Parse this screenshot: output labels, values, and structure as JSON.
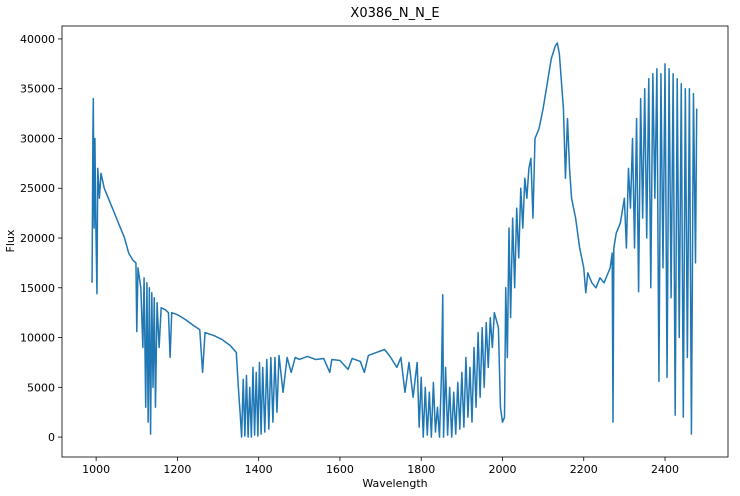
{
  "chart_data": {
    "type": "line",
    "title": "X0386_N_N_E",
    "x_label": "Wavelength",
    "y_label": "Flux",
    "x": [
      990,
      992,
      993,
      995,
      997,
      999,
      1002,
      1004,
      1008,
      1012,
      1020,
      1030,
      1040,
      1050,
      1060,
      1070,
      1080,
      1090,
      1098,
      1100,
      1103,
      1110,
      1115,
      1118,
      1122,
      1125,
      1128,
      1131,
      1134,
      1137,
      1140,
      1143,
      1146,
      1150,
      1155,
      1160,
      1170,
      1178,
      1182,
      1186,
      1200,
      1220,
      1240,
      1255,
      1262,
      1268,
      1290,
      1310,
      1330,
      1345,
      1350,
      1355,
      1358,
      1362,
      1366,
      1370,
      1374,
      1378,
      1382,
      1386,
      1390,
      1394,
      1398,
      1402,
      1406,
      1410,
      1415,
      1420,
      1425,
      1430,
      1435,
      1440,
      1445,
      1450,
      1460,
      1470,
      1480,
      1490,
      1500,
      1520,
      1540,
      1560,
      1575,
      1580,
      1600,
      1620,
      1630,
      1650,
      1660,
      1670,
      1690,
      1710,
      1725,
      1740,
      1750,
      1760,
      1770,
      1780,
      1790,
      1795,
      1800,
      1805,
      1810,
      1815,
      1820,
      1825,
      1830,
      1835,
      1840,
      1845,
      1850,
      1853,
      1855,
      1860,
      1865,
      1870,
      1875,
      1880,
      1885,
      1890,
      1895,
      1900,
      1905,
      1910,
      1915,
      1920,
      1925,
      1930,
      1935,
      1940,
      1945,
      1950,
      1955,
      1960,
      1965,
      1970,
      1975,
      1980,
      1990,
      1995,
      2000,
      2005,
      2008,
      2012,
      2016,
      2020,
      2025,
      2030,
      2035,
      2040,
      2045,
      2050,
      2055,
      2060,
      2065,
      2070,
      2075,
      2080,
      2090,
      2100,
      2110,
      2120,
      2130,
      2135,
      2140,
      2150,
      2155,
      2160,
      2165,
      2170,
      2180,
      2190,
      2200,
      2205,
      2210,
      2220,
      2230,
      2240,
      2250,
      2260,
      2265,
      2270,
      2272,
      2274,
      2280,
      2290,
      2300,
      2305,
      2310,
      2315,
      2320,
      2325,
      2330,
      2335,
      2340,
      2345,
      2350,
      2355,
      2360,
      2365,
      2370,
      2375,
      2380,
      2385,
      2390,
      2395,
      2400,
      2405,
      2410,
      2415,
      2420,
      2425,
      2430,
      2435,
      2440,
      2445,
      2450,
      2455,
      2460,
      2465,
      2470,
      2475,
      2478
    ],
    "series": [
      {
        "color": "#1f77b4",
        "values": [
          15500,
          30000,
          34000,
          21000,
          30000,
          22000,
          14400,
          27000,
          24000,
          26500,
          25000,
          24000,
          23000,
          22000,
          21000,
          20000,
          18500,
          17800,
          17500,
          10600,
          17000,
          15000,
          9000,
          16000,
          3000,
          15500,
          1500,
          15000,
          300,
          14500,
          5000,
          14000,
          3000,
          13500,
          9000,
          13000,
          12800,
          12500,
          8000,
          12500,
          12300,
          11800,
          11200,
          10800,
          6500,
          10500,
          10200,
          9800,
          9200,
          8500,
          5000,
          2000,
          0,
          5800,
          100,
          6200,
          0,
          5000,
          0,
          7000,
          200,
          6500,
          100,
          7500,
          300,
          7000,
          500,
          7800,
          800,
          8000,
          1500,
          8000,
          2500,
          8200,
          4500,
          8000,
          6500,
          8000,
          7800,
          8100,
          7800,
          7900,
          6500,
          7800,
          7700,
          6800,
          7900,
          7600,
          6500,
          8200,
          8500,
          8800,
          8000,
          7000,
          8000,
          4500,
          7500,
          4000,
          7500,
          1000,
          6000,
          0,
          5000,
          200,
          4500,
          0,
          5500,
          500,
          3000,
          0,
          6500,
          14300,
          0,
          7000,
          200,
          5000,
          0,
          4500,
          300,
          5500,
          800,
          6500,
          1000,
          8000,
          2000,
          7000,
          1500,
          9000,
          3000,
          10500,
          4000,
          11000,
          5000,
          11500,
          7000,
          12000,
          9000,
          12500,
          11000,
          3000,
          1500,
          2000,
          15000,
          8000,
          21000,
          12000,
          22000,
          15000,
          23000,
          18000,
          25000,
          21000,
          26000,
          24000,
          27000,
          28000,
          22000,
          30000,
          31000,
          33000,
          35500,
          38000,
          39300,
          39600,
          38500,
          33000,
          26000,
          32000,
          27000,
          24000,
          22000,
          19000,
          17000,
          14500,
          16500,
          15500,
          15000,
          16000,
          15500,
          16500,
          17000,
          18500,
          1500,
          19000,
          20500,
          21500,
          24000,
          19000,
          27000,
          23000,
          30000,
          19000,
          32000,
          14600,
          34000,
          22000,
          35000,
          20000,
          36000,
          15000,
          36500,
          24000,
          37000,
          5600,
          36500,
          17000,
          37500,
          6000,
          37000,
          14000,
          36500,
          2200,
          36000,
          10000,
          35500,
          2000,
          35000,
          8000,
          35000,
          300,
          34500,
          17500,
          33000
        ]
      }
    ],
    "xlim": [
      916,
      2555
    ],
    "ylim": [
      -2000,
      41300
    ],
    "xticks": [
      1000,
      1200,
      1400,
      1600,
      1800,
      2000,
      2200,
      2400
    ],
    "yticks": [
      0,
      5000,
      10000,
      15000,
      20000,
      25000,
      30000,
      35000,
      40000
    ],
    "grid": false
  }
}
